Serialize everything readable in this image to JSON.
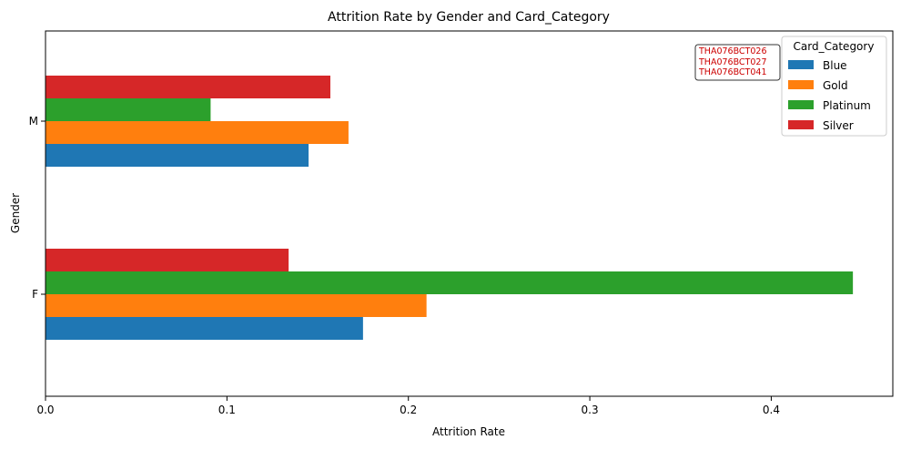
{
  "chart_data": {
    "type": "bar",
    "orientation": "horizontal",
    "title": "Attrition Rate by Gender and Card_Category",
    "xlabel": "Attrition Rate",
    "ylabel": "Gender",
    "categories": [
      "F",
      "M"
    ],
    "series": [
      {
        "name": "Blue",
        "values": [
          0.175,
          0.145
        ],
        "color": "#1f77b4"
      },
      {
        "name": "Gold",
        "values": [
          0.21,
          0.167
        ],
        "color": "#ff7f0e"
      },
      {
        "name": "Platinum",
        "values": [
          0.445,
          0.091
        ],
        "color": "#2ca02c"
      },
      {
        "name": "Silver",
        "values": [
          0.134,
          0.157
        ],
        "color": "#d62728"
      }
    ],
    "xlim": [
      0,
      0.467
    ],
    "xticks": [
      0.0,
      0.1,
      0.2,
      0.3,
      0.4
    ],
    "xtick_labels": [
      "0.0",
      "0.1",
      "0.2",
      "0.3",
      "0.4"
    ],
    "grid": false,
    "legend": {
      "title": "Card_Category",
      "placement": "top-right"
    },
    "annotation": {
      "lines": [
        "THA076BCT026",
        "THA076BCT027",
        "THA076BCT041"
      ],
      "color": "#cc0000",
      "placement": "top-right"
    }
  }
}
